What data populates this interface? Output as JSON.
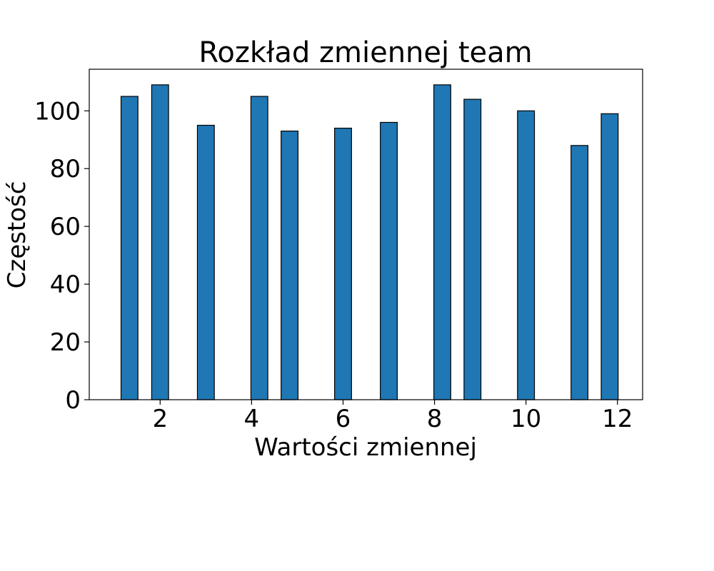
{
  "chart_data": {
    "type": "bar",
    "title": "Rozkład zmiennej team",
    "xlabel": "Wartości zmiennej",
    "ylabel": "Częstość",
    "x": [
      1.33,
      2.0,
      3.0,
      4.17,
      4.83,
      6.0,
      7.0,
      8.17,
      8.83,
      10.0,
      11.17,
      11.83
    ],
    "values": [
      105,
      109,
      95,
      105,
      93,
      94,
      96,
      109,
      104,
      100,
      88,
      99
    ],
    "bar_width": 0.37,
    "xlim": [
      0.45,
      12.55
    ],
    "ylim": [
      0,
      114.4
    ],
    "xticks": [
      2,
      4,
      6,
      8,
      10,
      12
    ],
    "yticks": [
      0,
      20,
      40,
      60,
      80,
      100
    ],
    "colors": {
      "bar": "#1f77b4",
      "edge": "#000000"
    },
    "grid": false,
    "legend": false
  }
}
